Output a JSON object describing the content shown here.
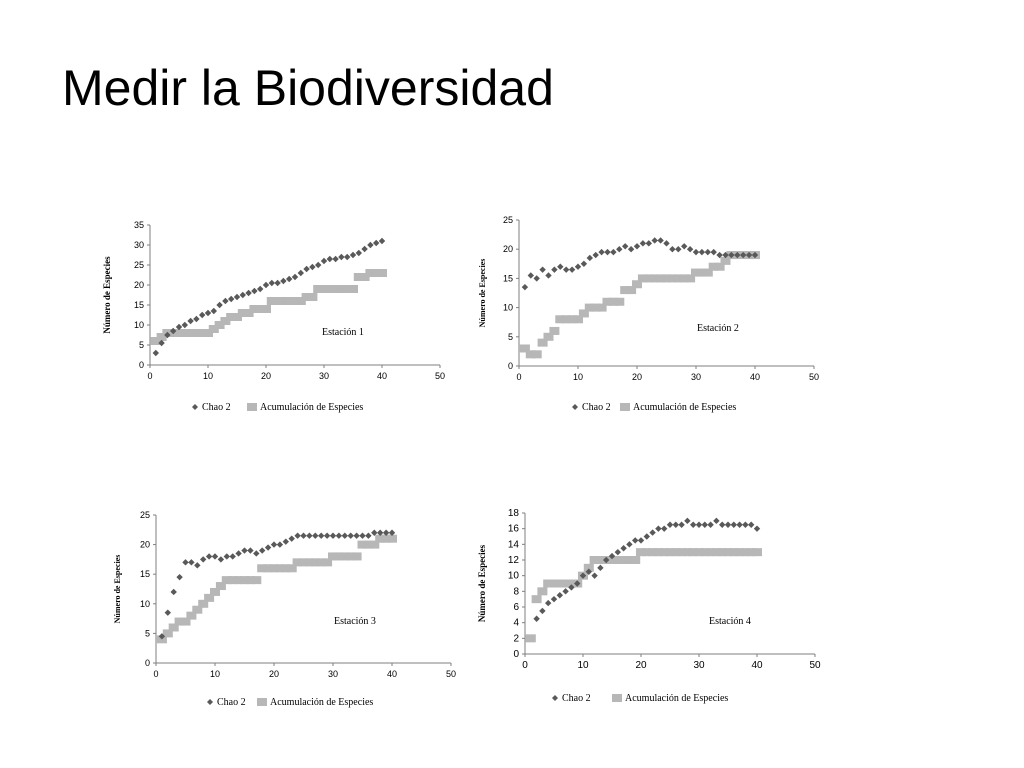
{
  "slide": {
    "title": "Medir la Biodiversidad"
  },
  "colors": {
    "chao": "#595959",
    "acumulacion": "#b7b7b7",
    "axis": "#7f7f7f"
  },
  "chart_data": [
    {
      "type": "scatter",
      "annotation": "Estación 1",
      "ylabel": "Número de Especies",
      "xlim": [
        0,
        50
      ],
      "ylim": [
        0,
        35
      ],
      "xticks": [
        0,
        10,
        20,
        30,
        40,
        50
      ],
      "yticks": [
        0,
        5,
        10,
        15,
        20,
        25,
        30,
        35
      ],
      "legend_position": "bottom",
      "series": [
        {
          "name": "Chao 2",
          "marker": "diamond",
          "x": [
            1,
            2,
            3,
            4,
            5,
            6,
            7,
            8,
            9,
            10,
            11,
            12,
            13,
            14,
            15,
            16,
            17,
            18,
            19,
            20,
            21,
            22,
            23,
            24,
            25,
            26,
            27,
            28,
            29,
            30,
            31,
            32,
            33,
            34,
            35,
            36,
            37,
            38,
            39,
            40
          ],
          "y": [
            3,
            5.5,
            7.5,
            8.5,
            9.5,
            10,
            11,
            11.5,
            12.5,
            13,
            13.5,
            15,
            16,
            16.5,
            17,
            17.5,
            18,
            18.5,
            19,
            20,
            20.5,
            20.5,
            21,
            21.5,
            22,
            23,
            24,
            24.5,
            25,
            26,
            26.5,
            26.5,
            27,
            27,
            27.5,
            28,
            29,
            30,
            30.5,
            31
          ]
        },
        {
          "name": "Acumulación de Especies",
          "marker": "square",
          "x": [
            1,
            2,
            3,
            4,
            5,
            6,
            7,
            8,
            9,
            10,
            11,
            12,
            13,
            14,
            15,
            16,
            17,
            18,
            19,
            20,
            21,
            22,
            23,
            24,
            25,
            26,
            27,
            28,
            29,
            30,
            31,
            32,
            33,
            34,
            35,
            36,
            37,
            38,
            39,
            40
          ],
          "y": [
            6,
            7,
            8,
            8,
            8,
            8,
            8,
            8,
            8,
            8,
            9,
            10,
            11,
            12,
            12,
            13,
            13,
            14,
            14,
            14,
            16,
            16,
            16,
            16,
            16,
            16,
            17,
            17,
            19,
            19,
            19,
            19,
            19,
            19,
            19,
            22,
            22,
            23,
            23,
            23
          ]
        }
      ]
    },
    {
      "type": "scatter",
      "annotation": "Estación 2",
      "ylabel": "Número de Especies",
      "xlim": [
        0,
        50
      ],
      "ylim": [
        0,
        25
      ],
      "xticks": [
        0,
        10,
        20,
        30,
        40,
        50
      ],
      "yticks": [
        0,
        5,
        10,
        15,
        20,
        25
      ],
      "legend_position": "bottom",
      "series": [
        {
          "name": "Chao 2",
          "marker": "diamond",
          "x": [
            1,
            2,
            3,
            4,
            5,
            6,
            7,
            8,
            9,
            10,
            11,
            12,
            13,
            14,
            15,
            16,
            17,
            18,
            19,
            20,
            21,
            22,
            23,
            24,
            25,
            26,
            27,
            28,
            29,
            30,
            31,
            32,
            33,
            34,
            35,
            36,
            37,
            38,
            39,
            40
          ],
          "y": [
            13.5,
            15.5,
            15,
            16.5,
            15.5,
            16.5,
            17,
            16.5,
            16.5,
            17,
            17.5,
            18.5,
            19,
            19.5,
            19.5,
            19.5,
            20,
            20.5,
            20,
            20.5,
            21,
            21,
            21.5,
            21.5,
            21,
            20,
            20,
            20.5,
            20,
            19.5,
            19.5,
            19.5,
            19.5,
            19,
            19,
            19,
            19,
            19,
            19,
            19
          ]
        },
        {
          "name": "Acumulación de Especies",
          "marker": "square",
          "x": [
            1,
            2,
            3,
            4,
            5,
            6,
            7,
            8,
            9,
            10,
            11,
            12,
            13,
            14,
            15,
            16,
            17,
            18,
            19,
            20,
            21,
            22,
            23,
            24,
            25,
            26,
            27,
            28,
            29,
            30,
            31,
            32,
            33,
            34,
            35,
            36,
            37,
            38,
            39,
            40
          ],
          "y": [
            3,
            2,
            2,
            4,
            5,
            6,
            8,
            8,
            8,
            8,
            9,
            10,
            10,
            10,
            11,
            11,
            11,
            13,
            13,
            14,
            15,
            15,
            15,
            15,
            15,
            15,
            15,
            15,
            15,
            16,
            16,
            16,
            17,
            17,
            18,
            19,
            19,
            19,
            19,
            19
          ]
        }
      ]
    },
    {
      "type": "scatter",
      "annotation": "Estación 3",
      "ylabel": "Número de Especies",
      "xlim": [
        0,
        50
      ],
      "ylim": [
        0,
        25
      ],
      "xticks": [
        0,
        10,
        20,
        30,
        40,
        50
      ],
      "yticks": [
        0,
        5,
        10,
        15,
        20,
        25
      ],
      "legend_position": "bottom",
      "series": [
        {
          "name": "Chao 2",
          "marker": "diamond",
          "x": [
            1,
            2,
            3,
            4,
            5,
            6,
            7,
            8,
            9,
            10,
            11,
            12,
            13,
            14,
            15,
            16,
            17,
            18,
            19,
            20,
            21,
            22,
            23,
            24,
            25,
            26,
            27,
            28,
            29,
            30,
            31,
            32,
            33,
            34,
            35,
            36,
            37,
            38,
            39,
            40
          ],
          "y": [
            4.5,
            8.5,
            12,
            14.5,
            17,
            17,
            16.5,
            17.5,
            18,
            18,
            17.5,
            18,
            18,
            18.5,
            19,
            19,
            18.5,
            19,
            19.5,
            20,
            20,
            20.5,
            21,
            21.5,
            21.5,
            21.5,
            21.5,
            21.5,
            21.5,
            21.5,
            21.5,
            21.5,
            21.5,
            21.5,
            21.5,
            21.5,
            22,
            22,
            22,
            22
          ]
        },
        {
          "name": "Acumulación de Especies",
          "marker": "square",
          "x": [
            1,
            2,
            3,
            4,
            5,
            6,
            7,
            8,
            9,
            10,
            11,
            12,
            13,
            14,
            15,
            16,
            17,
            18,
            19,
            20,
            21,
            22,
            23,
            24,
            25,
            26,
            27,
            28,
            29,
            30,
            31,
            32,
            33,
            34,
            35,
            36,
            37,
            38,
            39,
            40
          ],
          "y": [
            4,
            5,
            6,
            7,
            7,
            8,
            9,
            10,
            11,
            12,
            13,
            14,
            14,
            14,
            14,
            14,
            14,
            16,
            16,
            16,
            16,
            16,
            16,
            17,
            17,
            17,
            17,
            17,
            17,
            18,
            18,
            18,
            18,
            18,
            20,
            20,
            20,
            21,
            21,
            21
          ]
        }
      ]
    },
    {
      "type": "scatter",
      "annotation": "Estación 4",
      "ylabel": "Número de Especies",
      "xlim": [
        0,
        50
      ],
      "ylim": [
        0,
        18
      ],
      "xticks": [
        0,
        10,
        20,
        30,
        40,
        50
      ],
      "yticks": [
        0,
        2,
        4,
        6,
        8,
        10,
        12,
        14,
        16,
        18
      ],
      "legend_position": "bottom",
      "series": [
        {
          "name": "Chao 2",
          "marker": "diamond",
          "x": [
            2,
            3,
            4,
            5,
            6,
            7,
            8,
            9,
            10,
            11,
            12,
            13,
            14,
            15,
            16,
            17,
            18,
            19,
            20,
            21,
            22,
            23,
            24,
            25,
            26,
            27,
            28,
            29,
            30,
            31,
            32,
            33,
            34,
            35,
            36,
            37,
            38,
            39,
            40
          ],
          "y": [
            4.5,
            5.5,
            6.5,
            7,
            7.5,
            8,
            8.5,
            9,
            10,
            10.5,
            10,
            11,
            12,
            12.5,
            13,
            13.5,
            14,
            14.5,
            14.5,
            15,
            15.5,
            16,
            16,
            16.5,
            16.5,
            16.5,
            17,
            16.5,
            16.5,
            16.5,
            16.5,
            17,
            16.5,
            16.5,
            16.5,
            16.5,
            16.5,
            16.5,
            16
          ]
        },
        {
          "name": "Acumulación de Especies",
          "marker": "square",
          "x": [
            1,
            2,
            3,
            4,
            5,
            6,
            7,
            8,
            9,
            10,
            11,
            12,
            13,
            14,
            15,
            16,
            17,
            18,
            19,
            20,
            21,
            22,
            23,
            24,
            25,
            26,
            27,
            28,
            29,
            30,
            31,
            32,
            33,
            34,
            35,
            36,
            37,
            38,
            39,
            40
          ],
          "y": [
            2,
            7,
            8,
            9,
            9,
            9,
            9,
            9,
            9,
            10,
            11,
            12,
            12,
            12,
            12,
            12,
            12,
            12,
            12,
            13,
            13,
            13,
            13,
            13,
            13,
            13,
            13,
            13,
            13,
            13,
            13,
            13,
            13,
            13,
            13,
            13,
            13,
            13,
            13,
            13
          ]
        }
      ]
    }
  ]
}
